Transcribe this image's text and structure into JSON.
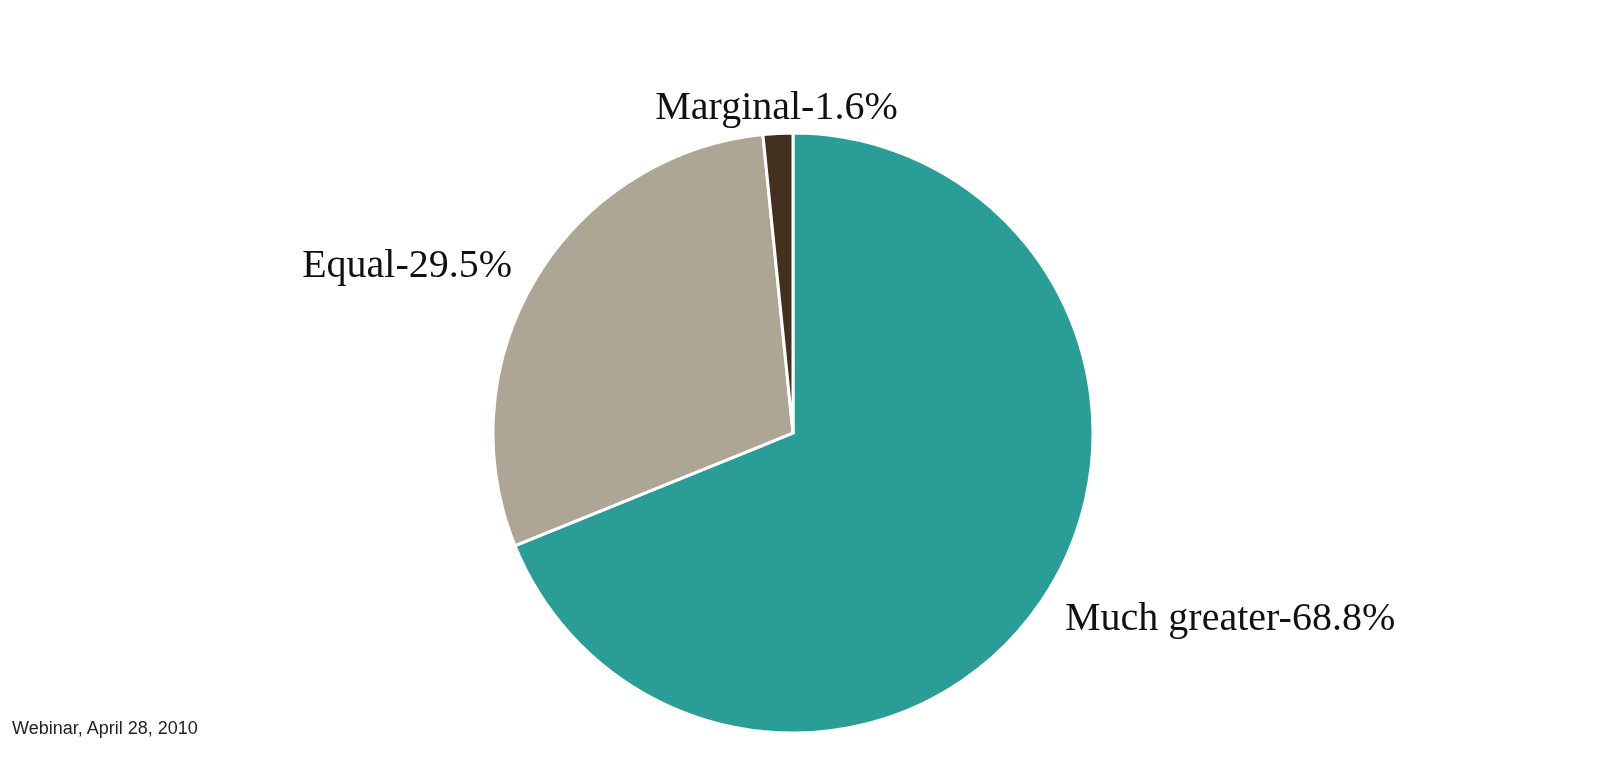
{
  "chart_data": {
    "type": "pie",
    "categories": [
      "Much greater-68.8%",
      "Equal-29.5%",
      "Marginal-1.6%"
    ],
    "values": [
      68.8,
      29.5,
      1.6
    ],
    "colors": [
      "#2a9d96",
      "#ada694",
      "#44301f"
    ],
    "annotations": [
      "Webinar, April 28, 2010"
    ]
  }
}
